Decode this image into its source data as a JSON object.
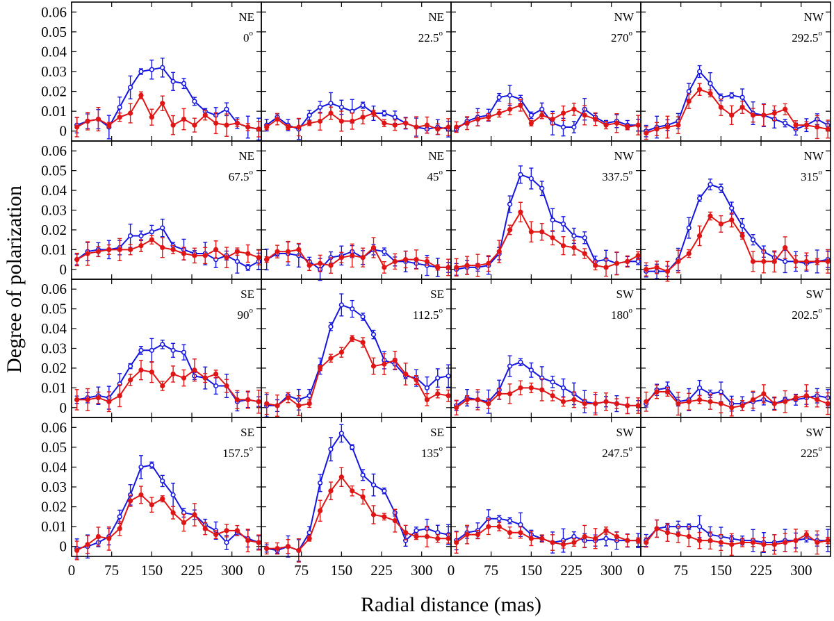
{
  "chart_data": {
    "type": "line",
    "ylabel": "Degree of polarization",
    "xlabel": "Radial distance (mas)",
    "xlim": [
      0,
      355
    ],
    "ylim": [
      -0.005,
      0.065
    ],
    "x_ticks": [
      0,
      75,
      150,
      225,
      300
    ],
    "y_ticks": [
      0,
      0.01,
      0.02,
      0.03,
      0.04,
      0.05,
      0.06
    ],
    "y_tick_labels": [
      "0",
      "0.01",
      "0.02",
      "0.03",
      "0.04",
      "0.05",
      "0.06"
    ],
    "colors": {
      "blue": "#1515e0",
      "red": "#e01515"
    },
    "x": [
      10,
      30,
      50,
      70,
      90,
      110,
      130,
      150,
      170,
      190,
      210,
      230,
      250,
      270,
      290,
      310,
      330,
      350
    ],
    "panels": [
      {
        "direction": "NE",
        "angle": "0",
        "blue": [
          0.003,
          0.005,
          0.006,
          0.002,
          0.012,
          0.022,
          0.03,
          0.031,
          0.032,
          0.025,
          0.024,
          0.015,
          0.01,
          0.008,
          0.011,
          0.004,
          0.002,
          0.001
        ],
        "red": [
          0.002,
          0.005,
          0.006,
          0.003,
          0.007,
          0.009,
          0.018,
          0.007,
          0.014,
          0.003,
          0.006,
          0.003,
          0.008,
          0.004,
          0.003,
          0.004,
          0.002,
          0.001
        ]
      },
      {
        "direction": "NE",
        "angle": "22.5",
        "blue": [
          0.003,
          0.007,
          0.003,
          0.001,
          0.008,
          0.012,
          0.014,
          0.012,
          0.01,
          0.013,
          0.009,
          0.009,
          0.007,
          0.004,
          0.002,
          0.001,
          0.002,
          0.001
        ],
        "red": [
          0.002,
          0.006,
          0.002,
          0.002,
          0.004,
          0.005,
          0.009,
          0.005,
          0.005,
          0.007,
          0.009,
          0.004,
          0.003,
          0.004,
          0.002,
          0.003,
          0.001,
          0.002
        ]
      },
      {
        "direction": "NW",
        "angle": "270",
        "blue": [
          0.001,
          0.005,
          0.007,
          0.008,
          0.017,
          0.018,
          0.016,
          0.008,
          0.011,
          0.004,
          0.002,
          0.002,
          0.011,
          0.007,
          0.004,
          0.005,
          0.003,
          0.003
        ],
        "red": [
          0.002,
          0.004,
          0.006,
          0.007,
          0.009,
          0.011,
          0.013,
          0.004,
          0.008,
          0.006,
          0.009,
          0.011,
          0.008,
          0.006,
          0.003,
          0.004,
          0.002,
          0.003
        ]
      },
      {
        "direction": "NW",
        "angle": "292.5",
        "blue": [
          0.0,
          0.002,
          0.003,
          0.005,
          0.02,
          0.03,
          0.024,
          0.017,
          0.018,
          0.017,
          0.009,
          0.008,
          0.006,
          0.004,
          0.001,
          0.003,
          0.006,
          0.003
        ],
        "red": [
          -0.001,
          0.001,
          0.002,
          0.003,
          0.015,
          0.021,
          0.019,
          0.012,
          0.008,
          0.012,
          0.008,
          0.008,
          0.009,
          0.011,
          0.003,
          0.003,
          0.002,
          0.001
        ]
      },
      {
        "direction": "NE",
        "angle": "67.5",
        "blue": [
          0.005,
          0.009,
          0.01,
          0.01,
          0.011,
          0.017,
          0.017,
          0.019,
          0.021,
          0.012,
          0.01,
          0.008,
          0.008,
          0.005,
          0.007,
          0.004,
          0.001,
          0.004
        ],
        "red": [
          0.005,
          0.008,
          0.009,
          0.01,
          0.01,
          0.01,
          0.012,
          0.015,
          0.011,
          0.01,
          0.008,
          0.007,
          0.007,
          0.01,
          0.006,
          0.009,
          0.008,
          0.006
        ]
      },
      {
        "direction": "NE",
        "angle": "45",
        "blue": [
          0.005,
          0.008,
          0.008,
          0.007,
          0.004,
          0.0,
          0.006,
          0.007,
          0.009,
          0.006,
          0.01,
          0.009,
          0.004,
          0.004,
          0.003,
          0.002,
          0.001,
          0.001
        ],
        "red": [
          0.005,
          0.009,
          0.009,
          0.01,
          0.002,
          0.003,
          0.002,
          0.006,
          0.007,
          0.006,
          0.011,
          0.001,
          0.004,
          0.005,
          0.005,
          0.004,
          0.001,
          0.001
        ]
      },
      {
        "direction": "NW",
        "angle": "337.5",
        "blue": [
          0.0,
          0.001,
          0.001,
          0.002,
          0.008,
          0.033,
          0.048,
          0.046,
          0.041,
          0.025,
          0.023,
          0.017,
          0.016,
          0.004,
          0.005,
          0.003,
          0.004,
          0.004
        ],
        "red": [
          0.001,
          0.002,
          0.002,
          0.003,
          0.009,
          0.02,
          0.029,
          0.019,
          0.019,
          0.016,
          0.012,
          0.011,
          0.008,
          0.002,
          0.001,
          0.003,
          0.004,
          0.007
        ]
      },
      {
        "direction": "NW",
        "angle": "315",
        "blue": [
          -0.001,
          -0.001,
          -0.001,
          0.005,
          0.021,
          0.036,
          0.043,
          0.041,
          0.031,
          0.022,
          0.015,
          0.009,
          0.006,
          0.004,
          0.004,
          0.003,
          0.004,
          0.005
        ],
        "red": [
          0.0,
          0.001,
          -0.001,
          0.004,
          0.008,
          0.017,
          0.027,
          0.023,
          0.025,
          0.017,
          0.004,
          0.004,
          0.004,
          0.011,
          0.004,
          0.004,
          0.004,
          0.004
        ]
      },
      {
        "direction": "SE",
        "angle": "90",
        "blue": [
          0.004,
          0.005,
          0.006,
          0.005,
          0.012,
          0.021,
          0.029,
          0.029,
          0.032,
          0.029,
          0.028,
          0.016,
          0.015,
          0.011,
          0.011,
          0.003,
          0.004,
          0.003
        ],
        "red": [
          0.004,
          0.004,
          0.005,
          0.003,
          0.006,
          0.014,
          0.019,
          0.018,
          0.011,
          0.017,
          0.015,
          0.019,
          0.015,
          0.017,
          0.011,
          0.004,
          0.004,
          0.003
        ]
      },
      {
        "direction": "SE",
        "angle": "112.5",
        "blue": [
          0.001,
          0.001,
          0.006,
          0.004,
          0.006,
          0.021,
          0.041,
          0.052,
          0.05,
          0.046,
          0.037,
          0.024,
          0.022,
          0.016,
          0.015,
          0.01,
          0.015,
          0.016
        ],
        "red": [
          0.002,
          0.001,
          0.005,
          0.001,
          0.002,
          0.02,
          0.025,
          0.028,
          0.035,
          0.033,
          0.021,
          0.022,
          0.024,
          0.017,
          0.014,
          0.004,
          0.007,
          0.006
        ]
      },
      {
        "direction": "SW",
        "angle": "180",
        "blue": [
          0.001,
          0.005,
          0.004,
          0.003,
          0.009,
          0.021,
          0.023,
          0.019,
          0.015,
          0.013,
          0.01,
          0.007,
          0.003,
          0.002,
          0.003,
          0.002,
          0.001,
          0.001
        ],
        "red": [
          0.0,
          0.004,
          0.004,
          0.002,
          0.007,
          0.007,
          0.01,
          0.01,
          0.009,
          0.006,
          0.003,
          0.004,
          0.002,
          0.002,
          0.003,
          0.002,
          0.001,
          0.001
        ]
      },
      {
        "direction": "SW",
        "angle": "202.5",
        "blue": [
          0.002,
          0.009,
          0.01,
          0.003,
          0.004,
          0.01,
          0.007,
          0.008,
          0.002,
          0.002,
          0.003,
          0.004,
          0.002,
          0.004,
          0.004,
          0.005,
          0.006,
          0.005
        ],
        "red": [
          0.003,
          0.008,
          0.008,
          0.002,
          0.003,
          0.004,
          0.003,
          0.002,
          0.0,
          0.001,
          0.004,
          0.007,
          0.002,
          0.003,
          0.005,
          0.006,
          0.004,
          0.002
        ]
      },
      {
        "direction": "SE",
        "angle": "157.5",
        "blue": [
          -0.001,
          0.0,
          0.002,
          0.005,
          0.015,
          0.026,
          0.04,
          0.041,
          0.033,
          0.026,
          0.017,
          0.016,
          0.011,
          0.008,
          0.002,
          0.007,
          0.004,
          0.002
        ],
        "red": [
          -0.002,
          0.001,
          0.005,
          0.004,
          0.009,
          0.023,
          0.026,
          0.021,
          0.024,
          0.017,
          0.012,
          0.016,
          0.009,
          0.006,
          0.008,
          0.008,
          0.003,
          0.002
        ]
      },
      {
        "direction": "SE",
        "angle": "135",
        "blue": [
          -0.001,
          -0.002,
          0.0,
          -0.002,
          0.007,
          0.032,
          0.049,
          0.057,
          0.05,
          0.036,
          0.031,
          0.028,
          0.017,
          0.003,
          0.008,
          0.009,
          0.007,
          0.006
        ],
        "red": [
          -0.001,
          -0.001,
          0.0,
          -0.002,
          0.004,
          0.018,
          0.028,
          0.035,
          0.028,
          0.025,
          0.016,
          0.015,
          0.013,
          0.007,
          0.005,
          0.005,
          0.004,
          0.004
        ]
      },
      {
        "direction": "SW",
        "angle": "247.5",
        "blue": [
          0.003,
          0.007,
          0.008,
          0.014,
          0.014,
          0.013,
          0.011,
          0.006,
          0.004,
          0.002,
          0.003,
          0.005,
          0.003,
          0.003,
          0.004,
          0.003,
          0.003,
          0.003
        ],
        "red": [
          0.002,
          0.006,
          0.006,
          0.01,
          0.01,
          0.007,
          0.007,
          0.004,
          0.004,
          0.002,
          0.001,
          0.002,
          0.005,
          0.004,
          0.008,
          0.005,
          0.003,
          0.003
        ]
      },
      {
        "direction": "SW",
        "angle": "225",
        "blue": [
          0.003,
          0.009,
          0.01,
          0.01,
          0.01,
          0.01,
          0.006,
          0.005,
          0.004,
          0.003,
          0.003,
          0.002,
          0.002,
          0.003,
          0.003,
          0.004,
          0.003,
          0.003
        ],
        "red": [
          0.002,
          0.009,
          0.007,
          0.006,
          0.005,
          0.003,
          0.003,
          0.002,
          0.001,
          0.002,
          0.002,
          0.001,
          0.001,
          0.002,
          0.003,
          0.006,
          0.002,
          0.003
        ]
      }
    ]
  }
}
